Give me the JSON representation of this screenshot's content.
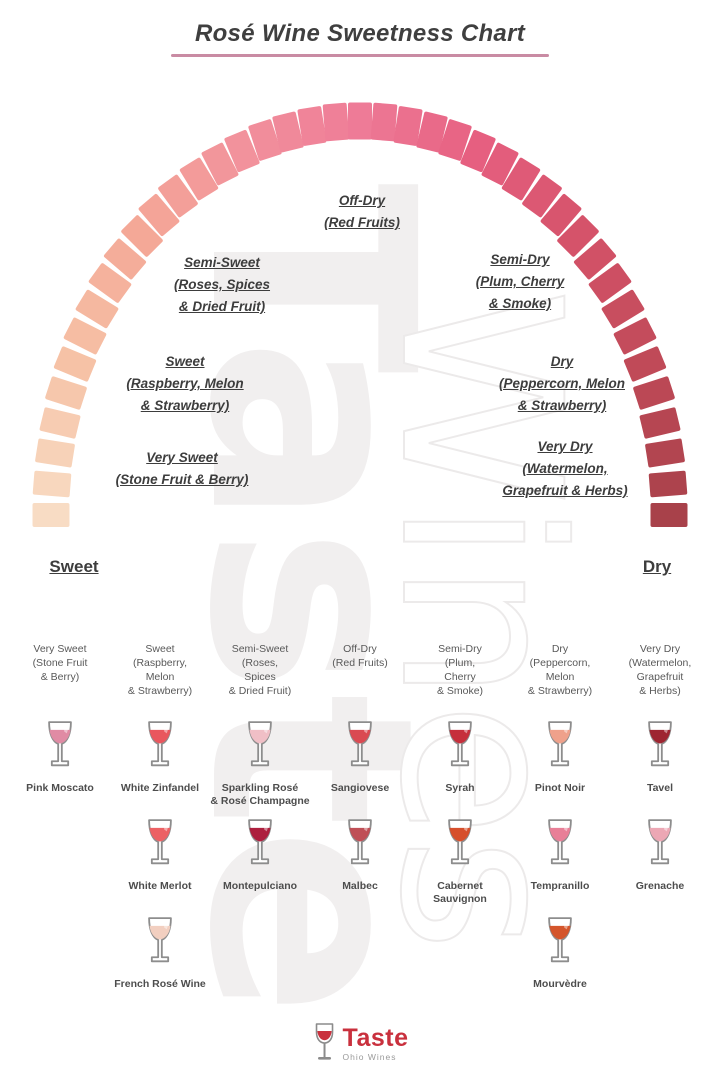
{
  "title": {
    "text": "Rosé Wine Sweetness Chart",
    "underline_color": "#c98ba3"
  },
  "watermark": {
    "primary": "Taste",
    "secondary": "Wines"
  },
  "gauge": {
    "segment_count": 41,
    "color_stops": [
      "#f8dcc4",
      "#f6c2a6",
      "#f4a897",
      "#f2929c",
      "#ee7b97",
      "#e65f80",
      "#d5536a",
      "#c04a58",
      "#a8414a"
    ],
    "left_end": "Sweet",
    "right_end": "Dry",
    "labels": {
      "off_dry": "Off-Dry\n(Red Fruits)",
      "semi_sweet": "Semi-Sweet\n(Roses, Spices\n& Dried Fruit)",
      "semi_dry": "Semi-Dry\n(Plum, Cherry\n& Smoke)",
      "sweet": "Sweet\n(Raspberry, Melon\n& Strawberry)",
      "dry": "Dry\n(Peppercorn, Melon\n& Strawberry)",
      "very_sweet": "Very Sweet\n(Stone Fruit & Berry)",
      "very_dry": "Very Dry\n(Watermelon,\nGrapefruit & Herbs)"
    }
  },
  "columns": [
    {
      "header": "Very Sweet\n(Stone Fruit\n& Berry)",
      "wines": [
        {
          "name": "Pink Moscato",
          "color": "#e08ba4"
        }
      ]
    },
    {
      "header": "Sweet\n(Raspberry,\nMelon\n& Strawberry)",
      "wines": [
        {
          "name": "White Zinfandel",
          "color": "#e9575e"
        },
        {
          "name": "White Merlot",
          "color": "#ec6164"
        },
        {
          "name": "French Rosé Wine",
          "color": "#f2cfc0"
        }
      ]
    },
    {
      "header": "Semi-Sweet\n(Roses,\nSpices\n& Dried Fruit)",
      "wines": [
        {
          "name": "Sparkling Rosé\n& Rosé Champagne",
          "color": "#f0bfc6"
        },
        {
          "name": "Montepulciano",
          "color": "#ad1f3e"
        }
      ]
    },
    {
      "header": "Off-Dry\n(Red Fruits)",
      "wines": [
        {
          "name": "Sangiovese",
          "color": "#da4a52"
        },
        {
          "name": "Malbec",
          "color": "#bf4f56"
        }
      ]
    },
    {
      "header": "Semi-Dry\n(Plum,\nCherry\n& Smoke)",
      "wines": [
        {
          "name": "Syrah",
          "color": "#c62f3c"
        },
        {
          "name": "Cabernet Sauvignon",
          "color": "#d64f2c"
        }
      ]
    },
    {
      "header": "Dry\n(Peppercorn,\nMelon\n& Strawberry)",
      "wines": [
        {
          "name": "Pinot Noir",
          "color": "#efa18b"
        },
        {
          "name": "Tempranillo",
          "color": "#e87f97"
        },
        {
          "name": "Mourvèdre",
          "color": "#d4552b"
        }
      ]
    },
    {
      "header": "Very Dry\n(Watermelon,\nGrapefruit\n& Herbs)",
      "wines": [
        {
          "name": "Tavel",
          "color": "#9e2531"
        },
        {
          "name": "Grenache",
          "color": "#eca7b4"
        }
      ]
    }
  ],
  "logo": {
    "brand": "Taste",
    "subtitle": "Ohio Wines",
    "accent_color": "#c9303d"
  }
}
